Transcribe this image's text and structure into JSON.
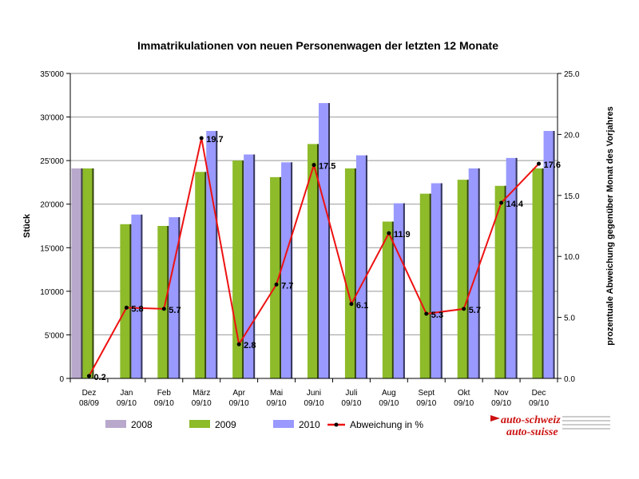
{
  "chart_data": {
    "type": "bar",
    "title": "Immatrikulationen von neuen Personenwagen der letzten 12 Monate",
    "ylabel": "Stück",
    "y2label": "prozentuale Abweichung gegenüber Monat des Vorjahres",
    "ylim": [
      0,
      35000
    ],
    "y2lim": [
      0,
      25
    ],
    "yticks": [
      "0",
      "5'000",
      "10'000",
      "15'000",
      "20'000",
      "25'000",
      "30'000",
      "35'000"
    ],
    "y2ticks": [
      "0.0",
      "5.0",
      "10.0",
      "15.0",
      "20.0",
      "25.0"
    ],
    "grid": true,
    "legend_position": "bottom",
    "categories": [
      [
        "Dez",
        "08/09"
      ],
      [
        "Jan",
        "09/10"
      ],
      [
        "Feb",
        "09/10"
      ],
      [
        "März",
        "09/10"
      ],
      [
        "Apr",
        "09/10"
      ],
      [
        "Mai",
        "09/10"
      ],
      [
        "Juni",
        "09/10"
      ],
      [
        "Juli",
        "09/10"
      ],
      [
        "Aug",
        "09/10"
      ],
      [
        "Sept",
        "09/10"
      ],
      [
        "Okt",
        "09/10"
      ],
      [
        "Nov",
        "09/10"
      ],
      [
        "Dec",
        "09/10"
      ]
    ],
    "series": [
      {
        "name": "2008",
        "color": "#b8a8cc",
        "values": [
          24100,
          null,
          null,
          null,
          null,
          null,
          null,
          null,
          null,
          null,
          null,
          null,
          null
        ]
      },
      {
        "name": "2009",
        "color": "#8dbb2a",
        "values": [
          24100,
          17700,
          17500,
          23700,
          25000,
          23100,
          26900,
          24100,
          18000,
          21200,
          22800,
          22100,
          24100
        ]
      },
      {
        "name": "2010",
        "color": "#9999ff",
        "values": [
          null,
          18800,
          18500,
          28400,
          25700,
          24800,
          31600,
          25600,
          20100,
          22400,
          24100,
          25300,
          28400
        ]
      }
    ],
    "line": {
      "name": "Abweichung in %",
      "color": "#ee1111",
      "axis": "right",
      "values": [
        0.2,
        5.8,
        5.7,
        19.7,
        2.8,
        7.7,
        17.5,
        6.1,
        11.9,
        5.3,
        5.7,
        14.4,
        17.6
      ],
      "labels": [
        "0.2",
        "5.8",
        "5.7",
        "19.7",
        "2.8",
        "7.7",
        "17.5",
        "6.1",
        "11.9",
        "5.3",
        "5.7",
        "14.4",
        "17.6"
      ]
    }
  },
  "logo": {
    "line1": "auto-schweiz",
    "line2": "auto-suisse",
    "colors": {
      "main": "#cc1111"
    }
  }
}
